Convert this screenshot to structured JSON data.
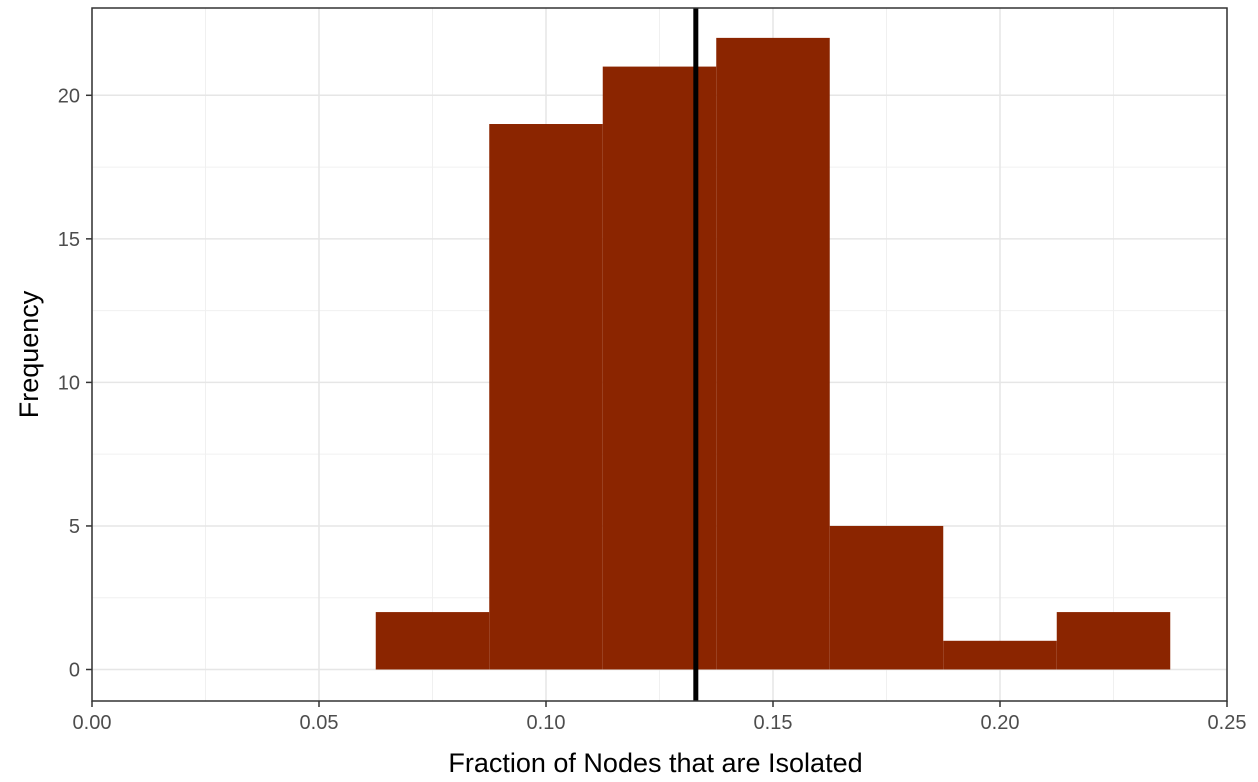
{
  "chart_data": {
    "type": "bar",
    "subtype": "histogram",
    "title": "",
    "xlabel": "Fraction of Nodes that are Isolated",
    "ylabel": "Frequency",
    "xlim": [
      0.0,
      0.25
    ],
    "ylim": [
      0,
      22
    ],
    "x_ticks": [
      0.0,
      0.05,
      0.1,
      0.15,
      0.2,
      0.25
    ],
    "x_tick_labels": [
      "0.00",
      "0.05",
      "0.10",
      "0.15",
      "0.20",
      "0.25"
    ],
    "y_ticks": [
      0,
      5,
      10,
      15,
      20
    ],
    "y_tick_labels": [
      "0",
      "5",
      "10",
      "15",
      "20"
    ],
    "bins": [
      {
        "x_start": 0.0625,
        "x_end": 0.0875,
        "count": 2
      },
      {
        "x_start": 0.0875,
        "x_end": 0.1125,
        "count": 19
      },
      {
        "x_start": 0.1125,
        "x_end": 0.1375,
        "count": 21
      },
      {
        "x_start": 0.1375,
        "x_end": 0.1625,
        "count": 22
      },
      {
        "x_start": 0.1625,
        "x_end": 0.1875,
        "count": 5
      },
      {
        "x_start": 0.1875,
        "x_end": 0.2125,
        "count": 1
      },
      {
        "x_start": 0.2125,
        "x_end": 0.2375,
        "count": 2
      }
    ],
    "reference_line": {
      "x": 0.133,
      "color": "#000000"
    },
    "bar_color": "#8b2500",
    "grid": true,
    "legend": "none"
  }
}
